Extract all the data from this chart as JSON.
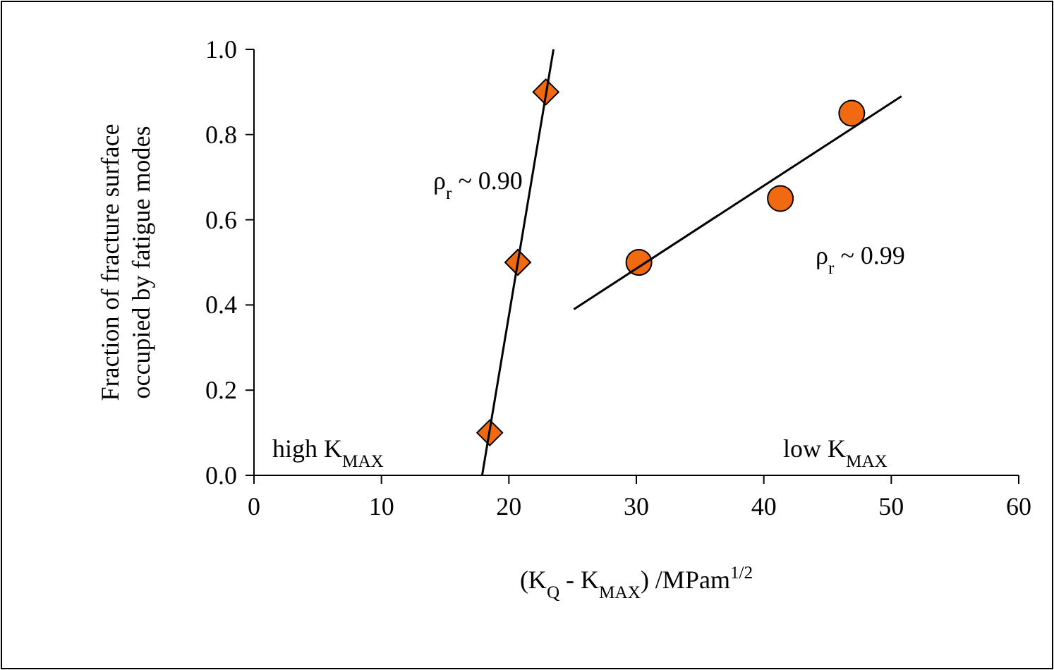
{
  "chart_data": {
    "type": "scatter",
    "xlabel": "(K$_{Q}$ - K$_{MAX}$) /MPam$^{1/2}$",
    "ylabel": "Fraction of fracture surface occupied by fatigue modes",
    "xlim": [
      0,
      60
    ],
    "xticks": [
      0,
      10,
      20,
      30,
      40,
      50,
      60
    ],
    "ylim": [
      0,
      1
    ],
    "yticks": [
      {
        "value": 0,
        "label": "0.0"
      },
      {
        "value": 0.2,
        "label": "0.2"
      },
      {
        "value": 0.4,
        "label": "0.4"
      },
      {
        "value": 0.6,
        "label": "0.6"
      },
      {
        "value": 0.8,
        "label": "0.8"
      },
      {
        "value": 1,
        "label": "1.0"
      }
    ],
    "grid": false,
    "series": [
      {
        "marker": "diamond",
        "color": "#f26a10",
        "x": [
          18.5,
          20.7,
          22.9
        ],
        "values": [
          0.1,
          0.5,
          0.9
        ]
      },
      {
        "marker": "circle",
        "color": "#f26a10",
        "x": [
          30.2,
          41.3,
          46.9
        ],
        "values": [
          0.5,
          0.65,
          0.85
        ]
      },
      {
        "type": "line",
        "marker": "none",
        "color": "#000000",
        "x": [
          17.9,
          23.5
        ],
        "values": [
          0,
          1
        ]
      },
      {
        "type": "line",
        "marker": "none",
        "color": "#000000",
        "x": [
          25.1,
          50.8
        ],
        "values": [
          0.39,
          0.89
        ]
      }
    ],
    "annotations": [
      "ρ$_{r}$ ~ 0.90",
      "ρ$_{r}$ ~ 0.99",
      "high K$_{MAX}$",
      "low K$_{MAX}$"
    ]
  }
}
